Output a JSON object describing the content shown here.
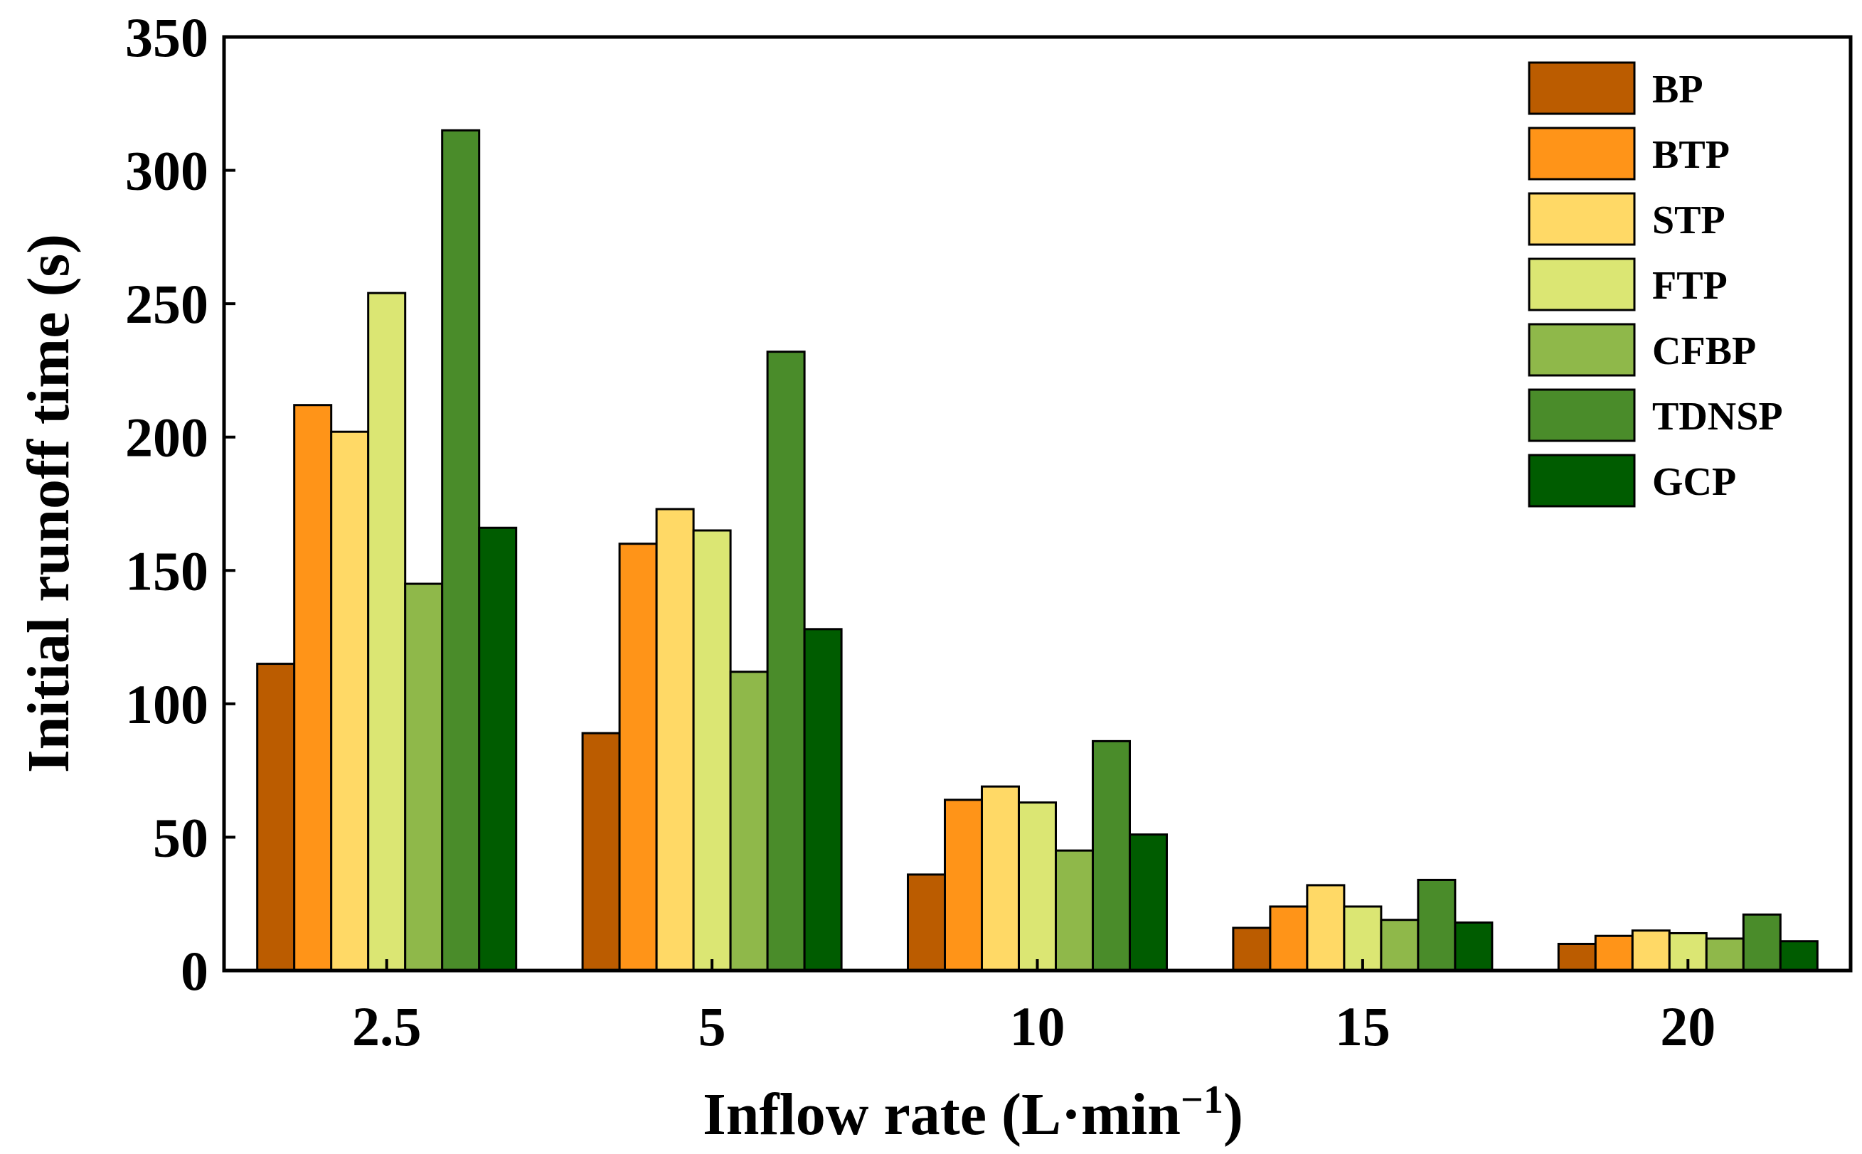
{
  "chart_data": {
    "type": "bar",
    "title": "",
    "xlabel": "Inflow rate (L·min",
    "xlabel_superscript": "−1",
    "xlabel_suffix": ")",
    "ylabel": "Initial runoff time (s)",
    "ylim": [
      0,
      350
    ],
    "yticks": [
      0,
      50,
      100,
      150,
      200,
      250,
      300,
      350
    ],
    "categories": [
      "2.5",
      "5",
      "10",
      "15",
      "20"
    ],
    "series": [
      {
        "name": "BP",
        "color": "#bb5c00",
        "values": [
          115,
          89,
          36,
          16,
          10
        ]
      },
      {
        "name": "BTP",
        "color": "#ff9418",
        "values": [
          212,
          160,
          64,
          24,
          13
        ]
      },
      {
        "name": "STP",
        "color": "#ffd966",
        "values": [
          202,
          173,
          69,
          32,
          15
        ]
      },
      {
        "name": "FTP",
        "color": "#dbe673",
        "values": [
          254,
          165,
          63,
          24,
          14
        ]
      },
      {
        "name": "CFBP",
        "color": "#8fb84a",
        "values": [
          145,
          112,
          45,
          19,
          12
        ]
      },
      {
        "name": "TDNSP",
        "color": "#4a8c2a",
        "values": [
          315,
          232,
          86,
          34,
          21
        ]
      },
      {
        "name": "GCP",
        "color": "#005c00",
        "values": [
          166,
          128,
          51,
          18,
          11
        ]
      }
    ],
    "legend_position": "top-right",
    "grid": false
  }
}
